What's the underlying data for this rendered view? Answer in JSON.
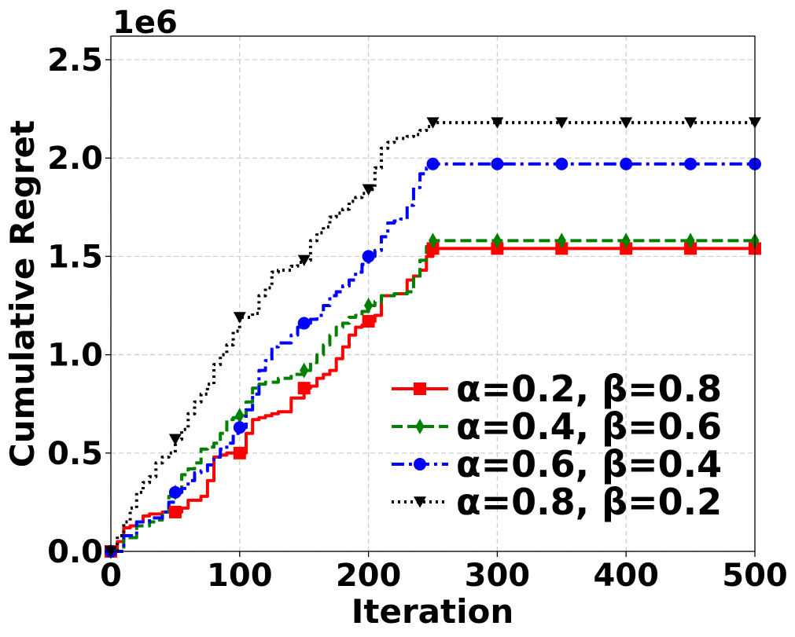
{
  "chart_data": {
    "type": "line",
    "xlabel": "Iteration",
    "ylabel": "Cumulative Regret",
    "y_offset_label": "1e6",
    "xlim": [
      0,
      500
    ],
    "ylim": [
      0,
      2.62
    ],
    "xticks": [
      0,
      100,
      200,
      300,
      400,
      500
    ],
    "xtick_labels": [
      "0",
      "100",
      "200",
      "300",
      "400",
      "500"
    ],
    "yticks": [
      0,
      0.5,
      1.0,
      1.5,
      2.0,
      2.5
    ],
    "ytick_labels": [
      "0.0",
      "0.5",
      "1.0",
      "1.5",
      "2.0",
      "2.5"
    ],
    "grid": true,
    "legend_position": "lower-right",
    "series": [
      {
        "name": "α=0.2, β=0.8",
        "color": "#ff0000",
        "dash": "solid",
        "marker": "square",
        "x": [
          0,
          5,
          10,
          15,
          20,
          25,
          30,
          40,
          50,
          55,
          60,
          70,
          75,
          80,
          85,
          90,
          95,
          100,
          105,
          110,
          115,
          120,
          125,
          130,
          140,
          150,
          155,
          160,
          165,
          170,
          175,
          180,
          185,
          190,
          195,
          200,
          205,
          210,
          220,
          230,
          235,
          240,
          245,
          250,
          300,
          350,
          400,
          450,
          500
        ],
        "y": [
          0.0,
          0.05,
          0.12,
          0.13,
          0.15,
          0.18,
          0.19,
          0.2,
          0.2,
          0.22,
          0.26,
          0.28,
          0.36,
          0.48,
          0.49,
          0.5,
          0.5,
          0.5,
          0.6,
          0.67,
          0.68,
          0.69,
          0.7,
          0.71,
          0.78,
          0.83,
          0.84,
          0.88,
          0.9,
          0.92,
          0.98,
          1.04,
          1.1,
          1.14,
          1.15,
          1.17,
          1.2,
          1.3,
          1.31,
          1.38,
          1.4,
          1.43,
          1.5,
          1.54,
          1.54,
          1.54,
          1.54,
          1.54,
          1.54
        ],
        "marker_x": [
          0,
          50,
          100,
          150,
          200,
          250,
          300,
          350,
          400,
          450,
          500
        ],
        "marker_y": [
          0.0,
          0.2,
          0.5,
          0.83,
          1.17,
          1.54,
          1.54,
          1.54,
          1.54,
          1.54,
          1.54
        ]
      },
      {
        "name": "α=0.4, β=0.6",
        "color": "#008000",
        "dash": "dashed",
        "marker": "thin_diamond",
        "x": [
          0,
          10,
          20,
          30,
          35,
          40,
          45,
          50,
          55,
          60,
          65,
          70,
          75,
          80,
          85,
          90,
          95,
          100,
          105,
          110,
          115,
          120,
          130,
          140,
          150,
          155,
          160,
          165,
          170,
          175,
          180,
          185,
          190,
          195,
          200,
          205,
          210,
          220,
          230,
          235,
          240,
          245,
          250,
          300,
          350,
          400,
          450,
          500
        ],
        "y": [
          0.0,
          0.07,
          0.13,
          0.15,
          0.16,
          0.2,
          0.28,
          0.3,
          0.39,
          0.42,
          0.45,
          0.52,
          0.53,
          0.55,
          0.6,
          0.67,
          0.68,
          0.69,
          0.76,
          0.83,
          0.85,
          0.86,
          0.88,
          0.9,
          0.92,
          0.96,
          1.0,
          1.05,
          1.1,
          1.14,
          1.16,
          1.19,
          1.2,
          1.22,
          1.25,
          1.27,
          1.3,
          1.31,
          1.32,
          1.4,
          1.48,
          1.55,
          1.58,
          1.58,
          1.58,
          1.58,
          1.58,
          1.58
        ],
        "marker_x": [
          0,
          50,
          100,
          150,
          200,
          250,
          300,
          350,
          400,
          450,
          500
        ],
        "marker_y": [
          0.0,
          0.3,
          0.69,
          0.92,
          1.25,
          1.58,
          1.58,
          1.58,
          1.58,
          1.58,
          1.58
        ]
      },
      {
        "name": "α=0.6, β=0.4",
        "color": "#0000ff",
        "dash": "dashdot",
        "marker": "circle",
        "x": [
          0,
          10,
          20,
          30,
          40,
          45,
          50,
          55,
          60,
          65,
          70,
          75,
          80,
          85,
          90,
          95,
          100,
          105,
          110,
          115,
          120,
          125,
          130,
          140,
          145,
          150,
          155,
          160,
          165,
          170,
          175,
          180,
          185,
          190,
          195,
          200,
          205,
          210,
          215,
          220,
          225,
          230,
          235,
          240,
          245,
          250,
          300,
          350,
          400,
          450,
          500
        ],
        "y": [
          0.0,
          0.08,
          0.15,
          0.17,
          0.2,
          0.25,
          0.3,
          0.32,
          0.36,
          0.4,
          0.41,
          0.44,
          0.48,
          0.52,
          0.55,
          0.6,
          0.63,
          0.72,
          0.8,
          0.92,
          0.97,
          1.04,
          1.06,
          1.1,
          1.14,
          1.16,
          1.18,
          1.2,
          1.25,
          1.3,
          1.32,
          1.35,
          1.38,
          1.42,
          1.46,
          1.5,
          1.53,
          1.6,
          1.67,
          1.68,
          1.69,
          1.76,
          1.85,
          1.92,
          1.95,
          1.97,
          1.97,
          1.97,
          1.97,
          1.97,
          1.97
        ],
        "marker_x": [
          0,
          50,
          100,
          150,
          200,
          250,
          300,
          350,
          400,
          450,
          500
        ],
        "marker_y": [
          0.0,
          0.3,
          0.63,
          1.16,
          1.5,
          1.97,
          1.97,
          1.97,
          1.97,
          1.97,
          1.97
        ]
      },
      {
        "name": "α=0.8, β=0.2",
        "color": "#000000",
        "dash": "dotted",
        "marker": "triangle_down",
        "x": [
          0,
          5,
          10,
          15,
          20,
          25,
          30,
          35,
          40,
          45,
          50,
          55,
          60,
          65,
          70,
          75,
          80,
          85,
          90,
          95,
          100,
          110,
          115,
          120,
          125,
          130,
          140,
          145,
          150,
          155,
          160,
          165,
          170,
          175,
          180,
          185,
          190,
          195,
          200,
          205,
          210,
          215,
          220,
          230,
          235,
          240,
          245,
          250,
          300,
          350,
          400,
          450,
          500
        ],
        "y": [
          0.0,
          0.08,
          0.15,
          0.22,
          0.3,
          0.35,
          0.38,
          0.45,
          0.48,
          0.5,
          0.57,
          0.62,
          0.7,
          0.76,
          0.8,
          0.85,
          0.95,
          1.0,
          1.05,
          1.12,
          1.19,
          1.21,
          1.3,
          1.34,
          1.42,
          1.43,
          1.45,
          1.47,
          1.48,
          1.58,
          1.62,
          1.65,
          1.7,
          1.72,
          1.74,
          1.78,
          1.8,
          1.82,
          1.84,
          1.95,
          2.05,
          2.08,
          2.1,
          2.11,
          2.12,
          2.14,
          2.16,
          2.18,
          2.18,
          2.18,
          2.18,
          2.18,
          2.18
        ],
        "marker_x": [
          0,
          50,
          100,
          150,
          200,
          250,
          300,
          350,
          400,
          450,
          500
        ],
        "marker_y": [
          0.0,
          0.57,
          1.19,
          1.48,
          1.84,
          2.18,
          2.18,
          2.18,
          2.18,
          2.18,
          2.18
        ]
      }
    ]
  }
}
